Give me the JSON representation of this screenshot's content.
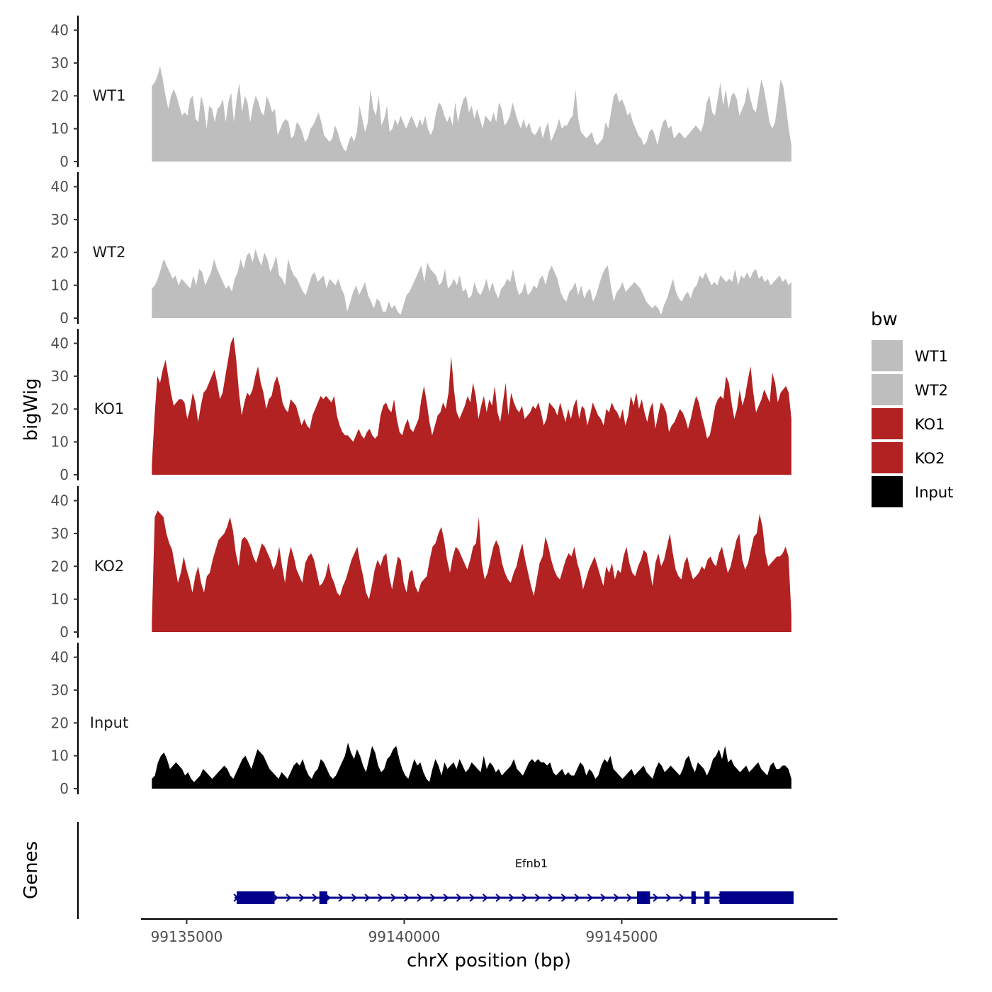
{
  "chart_data": {
    "type": "area",
    "y_axis_label": "bigWig",
    "x_axis_label": "chrX position (bp)",
    "y_ticks": [
      0,
      10,
      20,
      30,
      40
    ],
    "y_range": [
      0,
      44
    ],
    "x_ticks": [
      {
        "value": 99135000,
        "label": "99135000"
      },
      {
        "value": 99140000,
        "label": "99140000"
      },
      {
        "value": 99145000,
        "label": "99145000"
      }
    ],
    "x_range": [
      99133950,
      99149960
    ],
    "legend": {
      "title": "bw",
      "placement": "right",
      "entries": [
        {
          "label": "WT1",
          "color": "#bebebe"
        },
        {
          "label": "WT2",
          "color": "#bebebe"
        },
        {
          "label": "KO1",
          "color": "#b22222"
        },
        {
          "label": "KO2",
          "color": "#b22222"
        },
        {
          "label": "Input",
          "color": "#000000"
        }
      ]
    },
    "series": [
      {
        "name": "WT1",
        "color": "#bebebe",
        "x_start": 99134200,
        "x_end": 99148900,
        "values": [
          23,
          24,
          26,
          29,
          25,
          20,
          16,
          20,
          22,
          20,
          17,
          14,
          15,
          14,
          19,
          20,
          13,
          12,
          20,
          17,
          10,
          17,
          16,
          12,
          16,
          17,
          19,
          12,
          18,
          21,
          12,
          19,
          24,
          15,
          20,
          18,
          12,
          17,
          20,
          18,
          15,
          14,
          20,
          18,
          15,
          16,
          8,
          10,
          12,
          13,
          12,
          7,
          8,
          12,
          11,
          9,
          6,
          7,
          10,
          11,
          13,
          15,
          12,
          8,
          7,
          6,
          7,
          11,
          9,
          6,
          4,
          3,
          6,
          8,
          6,
          9,
          17,
          13,
          9,
          12,
          22,
          16,
          14,
          20,
          11,
          13,
          17,
          9,
          10,
          13,
          11,
          14,
          12,
          10,
          12,
          14,
          12,
          10,
          13,
          11,
          14,
          10,
          8,
          10,
          15,
          18,
          17,
          14,
          12,
          14,
          11,
          18,
          12,
          16,
          19,
          20,
          15,
          17,
          13,
          16,
          13,
          10,
          14,
          13,
          12,
          15,
          12,
          18,
          16,
          11,
          12,
          14,
          18,
          15,
          12,
          10,
          13,
          10,
          12,
          9,
          8,
          9,
          11,
          7,
          10,
          12,
          6,
          8,
          10,
          13,
          10,
          11,
          11,
          13,
          14,
          22,
          13,
          9,
          8,
          7,
          8,
          9,
          6,
          5,
          6,
          7,
          12,
          10,
          15,
          20,
          21,
          18,
          19,
          17,
          14,
          15,
          12,
          10,
          8,
          7,
          5,
          6,
          9,
          10,
          8,
          5,
          9,
          12,
          13,
          10,
          11,
          7,
          8,
          9,
          8,
          7,
          8,
          9,
          10,
          11,
          10,
          9,
          12,
          18,
          20,
          15,
          14,
          19,
          24,
          17,
          22,
          16,
          20,
          21,
          19,
          14,
          16,
          18,
          23,
          19,
          16,
          15,
          20,
          25,
          22,
          17,
          12,
          10,
          12,
          18,
          25,
          23,
          17,
          10,
          5
        ]
      },
      {
        "name": "WT2",
        "color": "#bebebe",
        "x_start": 99134200,
        "x_end": 99148900,
        "values": [
          9,
          10,
          12,
          15,
          18,
          16,
          14,
          12,
          13,
          10,
          12,
          11,
          10,
          9,
          13,
          10,
          15,
          14,
          10,
          12,
          14,
          18,
          15,
          13,
          11,
          9,
          10,
          8,
          12,
          14,
          18,
          15,
          19,
          20,
          17,
          21,
          18,
          16,
          20,
          18,
          14,
          16,
          19,
          13,
          12,
          10,
          18,
          15,
          13,
          12,
          10,
          8,
          7,
          10,
          13,
          14,
          11,
          12,
          13,
          9,
          12,
          11,
          10,
          12,
          9,
          7,
          2,
          5,
          8,
          10,
          7,
          9,
          11,
          7,
          5,
          3,
          6,
          5,
          2,
          2,
          5,
          3,
          4,
          2,
          1,
          4,
          7,
          8,
          10,
          12,
          14,
          16,
          11,
          17,
          15,
          14,
          13,
          10,
          11,
          15,
          9,
          10,
          12,
          10,
          13,
          8,
          9,
          6,
          7,
          11,
          8,
          7,
          9,
          12,
          8,
          11,
          8,
          6,
          9,
          10,
          12,
          11,
          15,
          10,
          7,
          8,
          11,
          7,
          8,
          10,
          9,
          12,
          13,
          10,
          14,
          16,
          14,
          12,
          8,
          6,
          5,
          8,
          9,
          11,
          7,
          10,
          6,
          8,
          9,
          5,
          7,
          10,
          13,
          15,
          16,
          10,
          5,
          8,
          9,
          11,
          8,
          9,
          10,
          11,
          10,
          9,
          7,
          5,
          4,
          3,
          4,
          3,
          1,
          4,
          6,
          9,
          12,
          8,
          6,
          5,
          7,
          8,
          6,
          9,
          10,
          13,
          12,
          14,
          12,
          10,
          11,
          10,
          13,
          12,
          11,
          12,
          11,
          15,
          10,
          13,
          12,
          14,
          12,
          14,
          15,
          12,
          13,
          11,
          12,
          10,
          11,
          12,
          13,
          11,
          12,
          10,
          11
        ]
      },
      {
        "name": "KO1",
        "color": "#b22222",
        "x_start": 99134200,
        "x_end": 99148900,
        "values": [
          3,
          18,
          30,
          28,
          32,
          35,
          30,
          25,
          21,
          22,
          23,
          23,
          22,
          17,
          20,
          25,
          22,
          16,
          21,
          25,
          26,
          28,
          30,
          32,
          28,
          23,
          25,
          30,
          35,
          40,
          42,
          35,
          25,
          18,
          22,
          25,
          24,
          26,
          30,
          33,
          28,
          25,
          20,
          23,
          24,
          28,
          30,
          27,
          22,
          20,
          19,
          23,
          22,
          21,
          18,
          15,
          17,
          15,
          14,
          18,
          20,
          22,
          24,
          23,
          24,
          23,
          22,
          24,
          18,
          15,
          13,
          12,
          12,
          11,
          10,
          12,
          14,
          12,
          11,
          13,
          14,
          12,
          11,
          12,
          18,
          21,
          22,
          20,
          19,
          23,
          17,
          13,
          12,
          15,
          17,
          14,
          13,
          15,
          17,
          23,
          27,
          22,
          16,
          12,
          15,
          18,
          19,
          22,
          20,
          25,
          36,
          26,
          19,
          17,
          19,
          21,
          24,
          22,
          28,
          24,
          17,
          21,
          24,
          19,
          23,
          21,
          27,
          19,
          16,
          22,
          28,
          18,
          25,
          22,
          20,
          19,
          21,
          17,
          18,
          19,
          21,
          20,
          22,
          19,
          15,
          17,
          22,
          21,
          20,
          18,
          22,
          19,
          16,
          20,
          17,
          21,
          23,
          17,
          21,
          20,
          15,
          18,
          22,
          20,
          18,
          17,
          15,
          20,
          19,
          22,
          20,
          19,
          17,
          20,
          15,
          18,
          24,
          21,
          25,
          20,
          23,
          19,
          16,
          20,
          22,
          14,
          18,
          22,
          21,
          19,
          13,
          15,
          16,
          18,
          20,
          19,
          17,
          14,
          17,
          21,
          24,
          22,
          18,
          15,
          11,
          12,
          16,
          21,
          23,
          24,
          23,
          30,
          28,
          22,
          17,
          20,
          26,
          21,
          24,
          29,
          33,
          25,
          19,
          21,
          23,
          26,
          24,
          22,
          31,
          28,
          22,
          25,
          26,
          27,
          25,
          17
        ]
      },
      {
        "name": "KO2",
        "color": "#b22222",
        "x_start": 99134200,
        "x_end": 99148900,
        "values": [
          3,
          35,
          37,
          36,
          35,
          30,
          27,
          25,
          20,
          15,
          18,
          23,
          19,
          16,
          12,
          17,
          20,
          15,
          12,
          17,
          18,
          22,
          25,
          28,
          29,
          30,
          32,
          35,
          31,
          24,
          20,
          28,
          29,
          28,
          26,
          23,
          21,
          24,
          27,
          26,
          24,
          22,
          19,
          21,
          26,
          20,
          15,
          22,
          26,
          23,
          19,
          17,
          15,
          21,
          23,
          24,
          22,
          18,
          14,
          15,
          17,
          21,
          17,
          15,
          12,
          11,
          14,
          16,
          19,
          22,
          24,
          26,
          21,
          17,
          12,
          10,
          14,
          19,
          22,
          20,
          23,
          24,
          17,
          13,
          18,
          23,
          22,
          15,
          12,
          18,
          19,
          14,
          12,
          15,
          16,
          17,
          22,
          26,
          27,
          30,
          32,
          28,
          22,
          18,
          23,
          26,
          25,
          23,
          21,
          19,
          22,
          26,
          27,
          35,
          21,
          16,
          18,
          22,
          26,
          28,
          26,
          21,
          18,
          16,
          15,
          18,
          20,
          24,
          27,
          22,
          18,
          14,
          11,
          16,
          21,
          23,
          29,
          26,
          22,
          19,
          17,
          16,
          19,
          22,
          24,
          23,
          26,
          21,
          18,
          13,
          16,
          19,
          21,
          23,
          20,
          17,
          14,
          20,
          18,
          21,
          16,
          19,
          18,
          23,
          26,
          21,
          18,
          17,
          20,
          22,
          25,
          24,
          19,
          14,
          21,
          24,
          20,
          22,
          26,
          30,
          24,
          19,
          17,
          16,
          21,
          23,
          19,
          16,
          17,
          18,
          20,
          19,
          22,
          23,
          21,
          20,
          24,
          26,
          22,
          18,
          20,
          24,
          28,
          30,
          22,
          19,
          21,
          25,
          29,
          30,
          36,
          32,
          24,
          20,
          21,
          22,
          23,
          23,
          24,
          26,
          23,
          5
        ]
      },
      {
        "name": "Input",
        "color": "#000000",
        "x_start": 99134200,
        "x_end": 99148900,
        "values": [
          3,
          4,
          8,
          10,
          11,
          9,
          6,
          7,
          8,
          7,
          6,
          4,
          5,
          3,
          2,
          3,
          4,
          6,
          5,
          4,
          3,
          4,
          5,
          6,
          7,
          6,
          4,
          3,
          5,
          7,
          9,
          10,
          8,
          6,
          9,
          12,
          11,
          10,
          8,
          6,
          5,
          4,
          3,
          5,
          4,
          3,
          5,
          7,
          8,
          7,
          9,
          6,
          4,
          3,
          5,
          6,
          9,
          8,
          6,
          4,
          3,
          4,
          6,
          8,
          10,
          14,
          11,
          9,
          12,
          10,
          7,
          5,
          9,
          13,
          11,
          7,
          5,
          6,
          9,
          10,
          12,
          13,
          9,
          6,
          4,
          3,
          6,
          9,
          7,
          8,
          5,
          3,
          2,
          6,
          9,
          7,
          4,
          8,
          6,
          7,
          8,
          6,
          9,
          7,
          5,
          6,
          8,
          7,
          6,
          5,
          10,
          6,
          8,
          7,
          5,
          6,
          4,
          5,
          6,
          7,
          9,
          6,
          5,
          4,
          6,
          8,
          9,
          8,
          9,
          8,
          8,
          7,
          8,
          5,
          4,
          5,
          6,
          4,
          5,
          4,
          4,
          6,
          8,
          7,
          4,
          6,
          5,
          3,
          4,
          7,
          9,
          8,
          10,
          6,
          5,
          4,
          3,
          4,
          5,
          6,
          4,
          5,
          6,
          7,
          5,
          4,
          3,
          6,
          8,
          7,
          5,
          6,
          7,
          6,
          5,
          4,
          6,
          9,
          10,
          7,
          5,
          8,
          7,
          6,
          4,
          6,
          9,
          10,
          12,
          9,
          13,
          8,
          9,
          7,
          6,
          5,
          6,
          7,
          5,
          6,
          7,
          8,
          6,
          5,
          4,
          7,
          8,
          6,
          6,
          7,
          7,
          6,
          3
        ]
      }
    ],
    "genes_track": {
      "label": "Genes",
      "gene_name": "Efnb1",
      "color": "#00008b",
      "strand": "+",
      "tx_start": 99136100,
      "tx_end": 99148950,
      "exons": [
        {
          "start": 99136150,
          "end": 99137020
        },
        {
          "start": 99138050,
          "end": 99138230
        },
        {
          "start": 99145350,
          "end": 99145650
        },
        {
          "start": 99146600,
          "end": 99146700
        },
        {
          "start": 99146900,
          "end": 99147020
        },
        {
          "start": 99147250,
          "end": 99148950
        }
      ]
    }
  }
}
